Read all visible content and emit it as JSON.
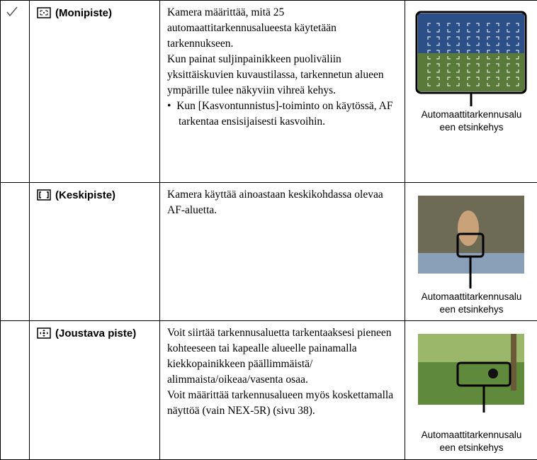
{
  "table": {
    "rows": [
      {
        "name": "(Monipiste)",
        "paragraphs": [
          "Kamera määrittää, mitä 25 automaattitarkennusalueesta käytetään tarkennukseen.",
          "Kun painat suljinpainikkeen puoliväliin yksittäiskuvien kuvaustilassa, tarkennetun alueen ympärille tulee näkyviin vihreä kehys."
        ],
        "bullet": "Kun [Kasvontunnistus]-toiminto on käytössä, AF tarkentaa ensisijaisesti kasvoihin.",
        "caption": [
          "Automaattitarkennusalu",
          "een etsinkehys"
        ]
      },
      {
        "name": "(Keskipiste)",
        "paragraphs": [
          "Kamera käyttää ainoastaan keskikohdassa olevaa AF-aluetta."
        ],
        "caption": [
          "Automaattitarkennusalu",
          "een etsinkehys"
        ]
      },
      {
        "name": "(Joustava piste)",
        "paragraphs": [
          "Voit siirtää tarkennusaluetta tarkentaaksesi pieneen kohteeseen tai kapealle alueelle painamalla kiekkopainikkeen päällimmäistä/ alimmaista/oikeaa/vasenta osaa.",
          "Voit määrittää tarkennusalueen myös koskettamalla näyttöä (vain NEX-5R) (sivu 38)."
        ],
        "caption": [
          "Automaattitarkennusalu",
          "een etsinkehys"
        ]
      }
    ]
  }
}
